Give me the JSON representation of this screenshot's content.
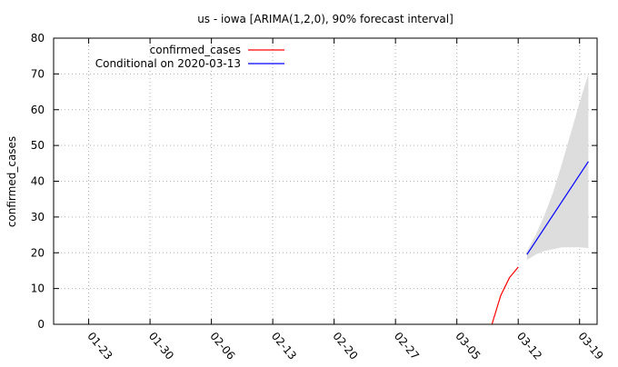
{
  "chart_data": {
    "type": "line",
    "title": "us - iowa [ARIMA(1,2,0), 90% forecast interval]",
    "xlabel": "",
    "ylabel": "confirmed_cases",
    "x_type": "date",
    "xlim": [
      "2020-01-19",
      "2020-03-21"
    ],
    "ylim": [
      0,
      80
    ],
    "y_ticks": [
      0,
      10,
      20,
      30,
      40,
      50,
      60,
      70,
      80
    ],
    "x_ticks": [
      "01-23",
      "01-30",
      "02-06",
      "02-13",
      "02-20",
      "02-27",
      "03-05",
      "03-12",
      "03-19"
    ],
    "x_tick_dates": [
      "2020-01-23",
      "2020-01-30",
      "2020-02-06",
      "2020-02-13",
      "2020-02-20",
      "2020-02-27",
      "2020-03-05",
      "2020-03-12",
      "2020-03-19"
    ],
    "grid": true,
    "legend_position": "top-left",
    "series": [
      {
        "name": "confirmed_cases",
        "color": "#ff0000",
        "points": [
          {
            "x": "2020-03-09",
            "y": 0
          },
          {
            "x": "2020-03-10",
            "y": 8
          },
          {
            "x": "2020-03-11",
            "y": 13
          },
          {
            "x": "2020-03-12",
            "y": 16
          }
        ]
      },
      {
        "name": "Conditional on 2020-03-13",
        "color": "#0000ff",
        "points": [
          {
            "x": "2020-03-13",
            "y": 19.5
          },
          {
            "x": "2020-03-20",
            "y": 45.5
          }
        ]
      }
    ],
    "forecast_interval": {
      "level": "90%",
      "color": "#dddddd",
      "points": [
        {
          "x": "2020-03-13",
          "lower": 18,
          "upper": 20.5
        },
        {
          "x": "2020-03-14",
          "lower": 19.5,
          "upper": 25
        },
        {
          "x": "2020-03-15",
          "lower": 20.5,
          "upper": 30.5
        },
        {
          "x": "2020-03-16",
          "lower": 21,
          "upper": 37
        },
        {
          "x": "2020-03-17",
          "lower": 21.5,
          "upper": 45
        },
        {
          "x": "2020-03-18",
          "lower": 21.5,
          "upper": 53.5
        },
        {
          "x": "2020-03-19",
          "lower": 21.5,
          "upper": 62
        },
        {
          "x": "2020-03-20",
          "lower": 21.3,
          "upper": 70
        }
      ]
    }
  }
}
